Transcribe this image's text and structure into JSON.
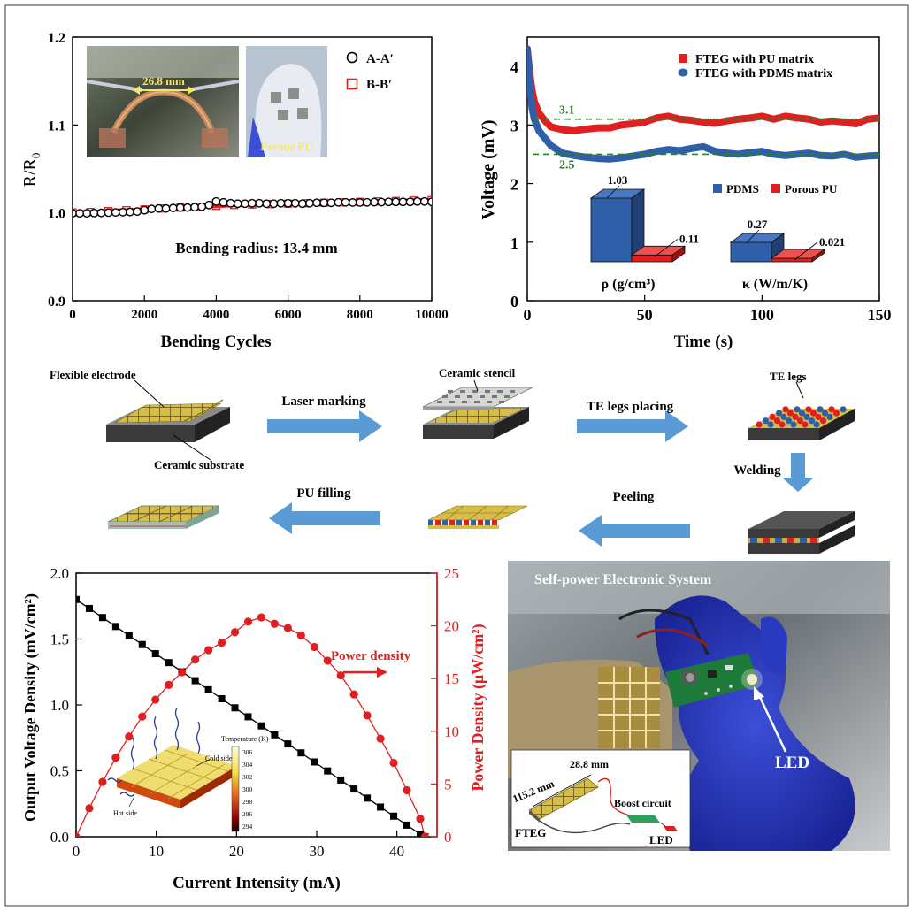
{
  "chart_data": [
    {
      "id": "resistance",
      "type": "scatter",
      "xlabel": "Bending Cycles",
      "ylabel_main": "R/R",
      "ylabel_sub": "0",
      "xlim": [
        0,
        10000
      ],
      "ylim": [
        0.9,
        1.2
      ],
      "xticks": [
        "0",
        "2000",
        "4000",
        "6000",
        "8000",
        "10000"
      ],
      "yticks": [
        "0.9",
        "1.0",
        "1.1",
        "1.2"
      ],
      "annotation": "Bending radius: 13.4 mm",
      "photo_labels": {
        "span": "26.8 mm",
        "material": "Porous PU"
      },
      "series": [
        {
          "name": "A-A′",
          "marker": "open-circle",
          "color": "#000000",
          "x": [
            0,
            200,
            400,
            600,
            800,
            1000,
            1200,
            1400,
            1600,
            1800,
            2000,
            2200,
            2400,
            2600,
            2800,
            3000,
            3200,
            3400,
            3600,
            3800,
            4000,
            4200,
            4400,
            4600,
            4800,
            5000,
            5200,
            5400,
            5600,
            5800,
            6000,
            6200,
            6400,
            6600,
            6800,
            7000,
            7200,
            7400,
            7600,
            7800,
            8000,
            8200,
            8400,
            8600,
            8800,
            9000,
            9200,
            9400,
            9600,
            9800,
            10000
          ],
          "y": [
            0.9995,
            0.9995,
            0.9995,
            0.9998,
            1.0,
            1.0003,
            1.0005,
            1.0008,
            1.001,
            1.0015,
            1.003,
            1.0045,
            1.005,
            1.005,
            1.0055,
            1.006,
            1.006,
            1.0065,
            1.007,
            1.009,
            1.013,
            1.012,
            1.011,
            1.0105,
            1.0105,
            1.011,
            1.011,
            1.0105,
            1.0105,
            1.011,
            1.011,
            1.011,
            1.0105,
            1.011,
            1.0115,
            1.0115,
            1.0115,
            1.012,
            1.012,
            1.0118,
            1.0118,
            1.012,
            1.0122,
            1.0122,
            1.0125,
            1.0125,
            1.0125,
            1.0125,
            1.013,
            1.013,
            1.0125
          ]
        },
        {
          "name": "B-B′",
          "marker": "open-square",
          "color": "#e02020",
          "x": [
            0,
            500,
            1000,
            1500,
            2000,
            2500,
            3000,
            3500,
            4000,
            4500,
            5000,
            5500,
            6000,
            6500,
            7000,
            7500,
            8000,
            8500,
            9000,
            9500,
            10000
          ],
          "y": [
            1.0005,
            1.001,
            1.002,
            1.003,
            1.004,
            1.005,
            1.006,
            1.007,
            1.008,
            1.009,
            1.0095,
            1.01,
            1.0105,
            1.011,
            1.0115,
            1.012,
            1.0125,
            1.013,
            1.0135,
            1.014,
            1.0145
          ]
        }
      ]
    },
    {
      "id": "voltage-time",
      "type": "line",
      "xlabel": "Time (s)",
      "ylabel": "Voltage (mV)",
      "xlim": [
        0,
        150
      ],
      "ylim": [
        0,
        4.5
      ],
      "xticks": [
        "0",
        "50",
        "100",
        "150"
      ],
      "yticks": [
        "0",
        "1",
        "2",
        "3",
        "4"
      ],
      "reference_lines": [
        {
          "value": 3.1,
          "label": "3.1"
        },
        {
          "value": 2.5,
          "label": "2.5"
        }
      ],
      "series": [
        {
          "name": "FTEG with PU matrix",
          "color": "#e02020",
          "x": [
            0,
            1,
            2,
            3,
            5,
            8,
            10,
            15,
            20,
            25,
            30,
            35,
            40,
            45,
            50,
            55,
            60,
            65,
            70,
            75,
            80,
            85,
            90,
            95,
            100,
            105,
            110,
            115,
            120,
            125,
            130,
            135,
            140,
            145,
            150
          ],
          "y": [
            4.3,
            3.9,
            3.6,
            3.4,
            3.2,
            3.05,
            2.97,
            2.92,
            2.9,
            2.93,
            2.95,
            2.95,
            3.0,
            3.02,
            3.05,
            3.12,
            3.15,
            3.1,
            3.08,
            3.05,
            3.03,
            3.07,
            3.1,
            3.12,
            3.15,
            3.1,
            3.15,
            3.12,
            3.1,
            3.05,
            3.07,
            3.05,
            3.02,
            3.1,
            3.12
          ]
        },
        {
          "name": "FTEG with PDMS matrix",
          "color": "#2f5fa8",
          "x": [
            0,
            1,
            2,
            3,
            5,
            8,
            10,
            15,
            20,
            25,
            30,
            35,
            40,
            45,
            50,
            55,
            60,
            65,
            70,
            75,
            80,
            85,
            90,
            95,
            100,
            105,
            110,
            115,
            120,
            125,
            130,
            135,
            140,
            145,
            150
          ],
          "y": [
            4.3,
            3.7,
            3.3,
            3.1,
            2.9,
            2.75,
            2.65,
            2.52,
            2.48,
            2.45,
            2.43,
            2.42,
            2.44,
            2.47,
            2.5,
            2.55,
            2.58,
            2.56,
            2.6,
            2.63,
            2.55,
            2.52,
            2.5,
            2.53,
            2.55,
            2.5,
            2.48,
            2.5,
            2.52,
            2.48,
            2.47,
            2.5,
            2.45,
            2.47,
            2.48
          ]
        }
      ]
    },
    {
      "id": "properties-inset",
      "type": "bar",
      "legend": [
        "PDMS",
        "Porous PU"
      ],
      "colors": [
        "#2f5fa8",
        "#e02020"
      ],
      "groups": [
        {
          "label": "ρ (g/cm³)",
          "values": [
            1.03,
            0.11
          ],
          "value_labels": [
            "1.03",
            "0.11"
          ]
        },
        {
          "label": "κ (W/m/K)",
          "values": [
            0.27,
            0.021
          ],
          "value_labels": [
            "0.27",
            "0.021"
          ]
        }
      ]
    },
    {
      "id": "output-performance",
      "type": "line",
      "xlabel": "Current Intensity (mA)",
      "ylabel_left": "Output Voltage Density (mV/cm²)",
      "ylabel_right": "Power Density (μW/cm²)",
      "xlim": [
        0,
        45
      ],
      "ylim_left": [
        0,
        2.0
      ],
      "ylim_right": [
        0,
        25
      ],
      "xticks": [
        "0",
        "10",
        "20",
        "30",
        "40"
      ],
      "yticks_left": [
        "0.0",
        "0.5",
        "1.0",
        "1.5",
        "2.0"
      ],
      "yticks_right": [
        "0",
        "5",
        "10",
        "15",
        "20",
        "25"
      ],
      "annotation": "Power density",
      "inset": {
        "title": "Temperature (K)",
        "scale": [
          "306",
          "304",
          "302",
          "300",
          "298",
          "296",
          "294"
        ],
        "cold": "Cold side",
        "hot": "Hot side"
      },
      "series": [
        {
          "name": "Output Voltage Density",
          "axis": "left",
          "marker": "square",
          "color": "#000000",
          "x": [
            0,
            1.65,
            3.3,
            4.95,
            6.6,
            8.25,
            9.9,
            11.55,
            13.2,
            14.85,
            16.5,
            18.15,
            19.8,
            21.45,
            23.1,
            24.75,
            26.4,
            28.05,
            29.7,
            31.35,
            33.0,
            34.65,
            36.3,
            37.95,
            39.6,
            41.25,
            42.9,
            43.5
          ],
          "y": [
            1.8,
            1.732,
            1.663,
            1.595,
            1.526,
            1.458,
            1.389,
            1.321,
            1.252,
            1.184,
            1.115,
            1.047,
            0.978,
            0.91,
            0.841,
            0.773,
            0.704,
            0.636,
            0.567,
            0.499,
            0.43,
            0.362,
            0.293,
            0.225,
            0.156,
            0.088,
            0.019,
            0.0
          ]
        },
        {
          "name": "Power Density",
          "axis": "right",
          "marker": "circle",
          "color": "#e02020",
          "x": [
            0,
            1.65,
            3.3,
            4.95,
            6.6,
            8.25,
            9.9,
            11.55,
            13.2,
            14.85,
            16.5,
            18.15,
            19.8,
            21.45,
            23.1,
            24.75,
            26.4,
            28.05,
            29.7,
            31.35,
            33.0,
            34.65,
            36.3,
            37.95,
            39.6,
            41.25,
            42.9,
            43.5
          ],
          "y": [
            0,
            2.7,
            5.2,
            7.5,
            9.5,
            11.4,
            13.0,
            14.4,
            15.6,
            16.8,
            17.7,
            18.4,
            19.4,
            20.4,
            20.8,
            20.2,
            19.8,
            19.1,
            18.0,
            16.7,
            15.3,
            13.5,
            11.5,
            9.3,
            7.0,
            4.4,
            1.7,
            0.0
          ]
        }
      ]
    }
  ],
  "process": {
    "steps": [
      "Flexible electrode",
      "Ceramic substrate",
      "Ceramic stencil",
      "TE legs",
      "Laser marking",
      "TE legs placing",
      "Welding",
      "Peeling",
      "PU filling"
    ]
  },
  "photo": {
    "title": "Self-power Electronic System",
    "led": "LED",
    "inset": {
      "length": "115.2 mm",
      "width": "28.8 mm",
      "boost": "Boost circuit",
      "fteg": "FTEG",
      "led": "LED"
    }
  },
  "colors": {
    "red": "#e02020",
    "blue": "#2f5fa8",
    "arrow": "#5b9bd5",
    "dashed": "#2e7d32",
    "gold": "#d4b43c"
  }
}
